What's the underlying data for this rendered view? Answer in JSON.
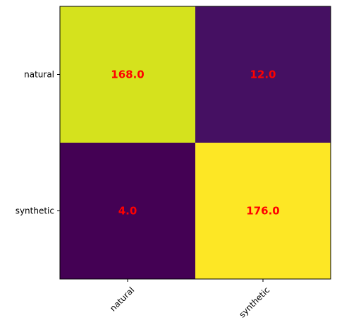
{
  "chart_data": {
    "type": "heatmap",
    "title": "",
    "xlabel": "",
    "ylabel": "",
    "x_categories": [
      "natural",
      "synthetic"
    ],
    "y_categories": [
      "natural",
      "synthetic"
    ],
    "values": [
      [
        168.0,
        12.0
      ],
      [
        4.0,
        176.0
      ]
    ],
    "value_labels": [
      [
        "168.0",
        "12.0"
      ],
      [
        "4.0",
        "176.0"
      ]
    ],
    "value_range": [
      4.0,
      176.0
    ],
    "colormap": "viridis",
    "annotation_color": "#ff0000",
    "x_tick_rotation_deg": 45,
    "grid": false,
    "legend": "none"
  }
}
